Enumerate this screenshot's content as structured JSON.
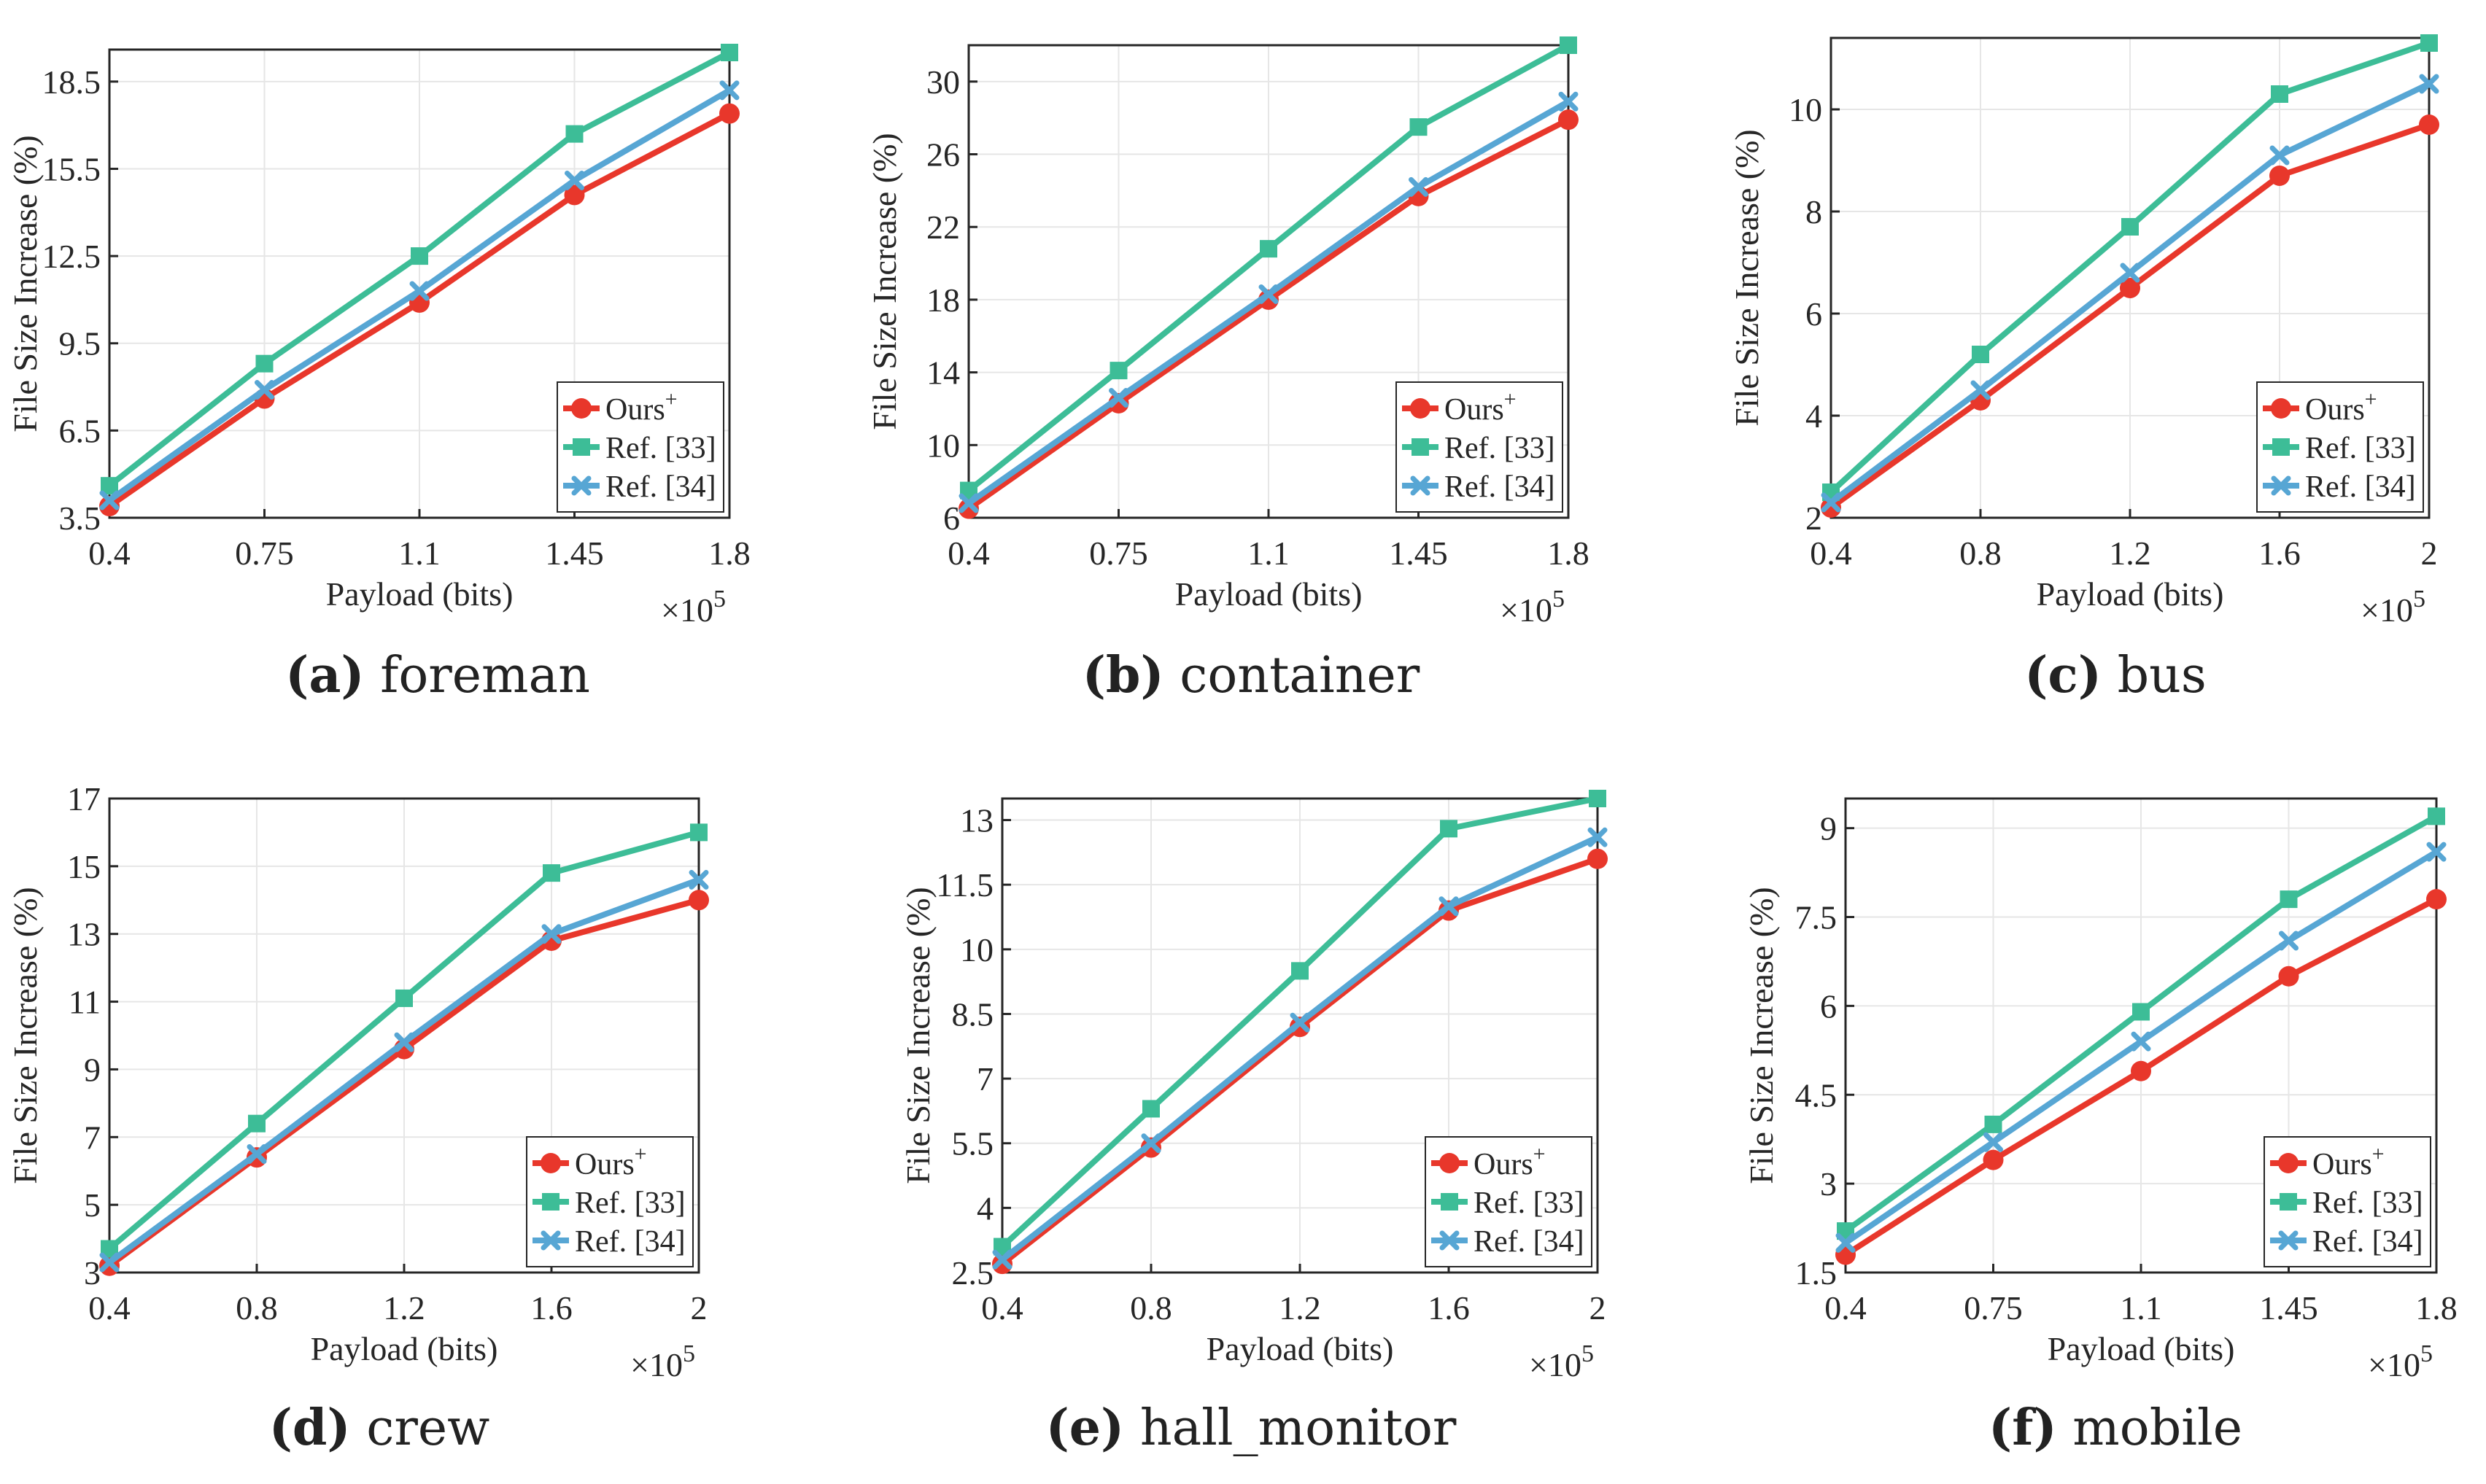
{
  "figure": {
    "colors": {
      "ours": "#e8372b",
      "ref33": "#3dbd97",
      "ref34": "#57a6d4",
      "axis": "#262626",
      "grid": "#e6e6e6"
    },
    "legend_labels": {
      "ours": "Ours",
      "ours_sup": "+",
      "ref33": "Ref. [33]",
      "ref34": "Ref. [34]"
    },
    "markers": {
      "ours": "circle",
      "ref33": "square",
      "ref34": "x"
    },
    "ylabel": "File Size Increase (%)",
    "xlabel": "Payload (bits)",
    "x_multiplier": "×10",
    "x_multiplier_exp": "5"
  },
  "chart_data": [
    {
      "type": "line",
      "caption_letter": "(a)",
      "caption_name": "foreman",
      "title": "foreman",
      "xlabel": "Payload (bits)",
      "ylabel": "File Size Increase (%)",
      "x": [
        0.4,
        0.75,
        1.1,
        1.45,
        1.8
      ],
      "xticks": [
        "0.4",
        "0.75",
        "1.1",
        "1.45",
        "1.8"
      ],
      "xlim": [
        0.4,
        1.8
      ],
      "yticks": [
        "3.5",
        "6.5",
        "9.5",
        "12.5",
        "15.5",
        "18.5"
      ],
      "ylim": [
        3.5,
        19.6
      ],
      "legend": "bottom-right",
      "series": [
        {
          "name": "Ours+",
          "values": [
            3.9,
            7.6,
            10.9,
            14.6,
            17.4
          ]
        },
        {
          "name": "Ref. [33]",
          "values": [
            4.6,
            8.8,
            12.5,
            16.7,
            19.5
          ]
        },
        {
          "name": "Ref. [34]",
          "values": [
            4.1,
            7.9,
            11.3,
            15.1,
            18.2
          ]
        }
      ]
    },
    {
      "type": "line",
      "caption_letter": "(b)",
      "caption_name": "container",
      "title": "container",
      "xlabel": "Payload (bits)",
      "ylabel": "File Size Increase (%)",
      "x": [
        0.4,
        0.75,
        1.1,
        1.45,
        1.8
      ],
      "xticks": [
        "0.4",
        "0.75",
        "1.1",
        "1.45",
        "1.8"
      ],
      "xlim": [
        0.4,
        1.8
      ],
      "yticks": [
        "6",
        "10",
        "14",
        "18",
        "22",
        "26",
        "30"
      ],
      "ylim": [
        6,
        32
      ],
      "legend": "bottom-right",
      "series": [
        {
          "name": "Ours+",
          "values": [
            6.5,
            12.3,
            18.0,
            23.7,
            27.9
          ]
        },
        {
          "name": "Ref. [33]",
          "values": [
            7.5,
            14.1,
            20.8,
            27.5,
            32.0
          ]
        },
        {
          "name": "Ref. [34]",
          "values": [
            6.8,
            12.6,
            18.3,
            24.2,
            28.9
          ]
        }
      ]
    },
    {
      "type": "line",
      "caption_letter": "(c)",
      "caption_name": "bus",
      "title": "bus",
      "xlabel": "Payload (bits)",
      "ylabel": "File Size Increase (%)",
      "x": [
        0.4,
        0.8,
        1.2,
        1.6,
        2.0
      ],
      "xticks": [
        "0.4",
        "0.8",
        "1.2",
        "1.6",
        "2"
      ],
      "xlim": [
        0.4,
        2.0
      ],
      "yticks": [
        "2",
        "4",
        "6",
        "8",
        "10"
      ],
      "ylim": [
        2,
        11.4
      ],
      "legend": "bottom-right",
      "series": [
        {
          "name": "Ours+",
          "values": [
            2.2,
            4.3,
            6.5,
            8.7,
            9.7
          ]
        },
        {
          "name": "Ref. [33]",
          "values": [
            2.5,
            5.2,
            7.7,
            10.3,
            11.3
          ]
        },
        {
          "name": "Ref. [34]",
          "values": [
            2.3,
            4.5,
            6.8,
            9.1,
            10.5
          ]
        }
      ]
    },
    {
      "type": "line",
      "caption_letter": "(d)",
      "caption_name": "crew",
      "title": "crew",
      "xlabel": "Payload (bits)",
      "ylabel": "File Size Increase (%)",
      "x": [
        0.4,
        0.8,
        1.2,
        1.6,
        2.0
      ],
      "xticks": [
        "0.4",
        "0.8",
        "1.2",
        "1.6",
        "2"
      ],
      "xlim": [
        0.4,
        2.0
      ],
      "yticks": [
        "3",
        "5",
        "7",
        "9",
        "11",
        "13",
        "15",
        "17"
      ],
      "ylim": [
        3,
        17
      ],
      "legend": "bottom-right",
      "series": [
        {
          "name": "Ours+",
          "values": [
            3.2,
            6.4,
            9.6,
            12.8,
            14.0
          ]
        },
        {
          "name": "Ref. [33]",
          "values": [
            3.7,
            7.4,
            11.1,
            14.8,
            16.0
          ]
        },
        {
          "name": "Ref. [34]",
          "values": [
            3.3,
            6.5,
            9.8,
            13.0,
            14.6
          ]
        }
      ]
    },
    {
      "type": "line",
      "caption_letter": "(e)",
      "caption_name": "hall_monitor",
      "title": "hall_monitor",
      "xlabel": "Payload (bits)",
      "ylabel": "File Size Increase (%)",
      "x": [
        0.4,
        0.8,
        1.2,
        1.6,
        2.0
      ],
      "xticks": [
        "0.4",
        "0.8",
        "1.2",
        "1.6",
        "2"
      ],
      "xlim": [
        0.4,
        2.0
      ],
      "yticks": [
        "2.5",
        "4",
        "5.5",
        "7",
        "8.5",
        "10",
        "11.5",
        "13"
      ],
      "ylim": [
        2.5,
        13.5
      ],
      "legend": "bottom-right",
      "series": [
        {
          "name": "Ours+",
          "values": [
            2.7,
            5.4,
            8.2,
            10.9,
            12.1
          ]
        },
        {
          "name": "Ref. [33]",
          "values": [
            3.1,
            6.3,
            9.5,
            12.8,
            13.5
          ]
        },
        {
          "name": "Ref. [34]",
          "values": [
            2.8,
            5.5,
            8.3,
            11.0,
            12.6
          ]
        }
      ]
    },
    {
      "type": "line",
      "caption_letter": "(f)",
      "caption_name": "mobile",
      "title": "mobile",
      "xlabel": "Payload (bits)",
      "ylabel": "File Size Increase (%)",
      "x": [
        0.4,
        0.75,
        1.1,
        1.45,
        1.8
      ],
      "xticks": [
        "0.4",
        "0.75",
        "1.1",
        "1.45",
        "1.8"
      ],
      "xlim": [
        0.4,
        1.8
      ],
      "yticks": [
        "1.5",
        "3",
        "4.5",
        "6",
        "7.5",
        "9"
      ],
      "ylim": [
        1.5,
        9.5
      ],
      "legend": "bottom-right",
      "series": [
        {
          "name": "Ours+",
          "values": [
            1.8,
            3.4,
            4.9,
            6.5,
            7.8
          ]
        },
        {
          "name": "Ref. [33]",
          "values": [
            2.2,
            4.0,
            5.9,
            7.8,
            9.2
          ]
        },
        {
          "name": "Ref. [34]",
          "values": [
            2.0,
            3.7,
            5.4,
            7.1,
            8.6
          ]
        }
      ]
    }
  ]
}
